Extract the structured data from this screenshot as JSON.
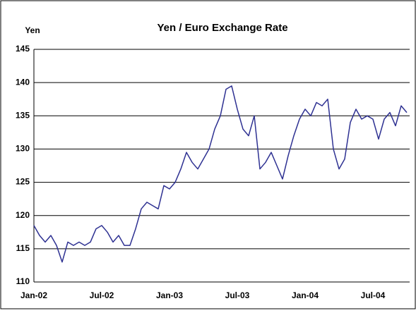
{
  "chart_data": {
    "type": "line",
    "title": "Yen / Euro Exchange Rate",
    "y_label": "Yen",
    "categories": [
      "Jan-02",
      null,
      null,
      null,
      null,
      null,
      null,
      null,
      null,
      null,
      null,
      null,
      "Jul-02",
      null,
      null,
      null,
      null,
      null,
      null,
      null,
      null,
      null,
      null,
      null,
      "Jan-03",
      null,
      null,
      null,
      null,
      null,
      null,
      null,
      null,
      null,
      null,
      null,
      "Jul-03",
      null,
      null,
      null,
      null,
      null,
      null,
      null,
      null,
      null,
      null,
      null,
      "Jan-04",
      null,
      null,
      null,
      null,
      null,
      null,
      null,
      null,
      null,
      null,
      null,
      "Jul-04",
      null,
      null,
      null,
      null,
      null,
      null
    ],
    "series": [
      {
        "name": "Yen / Euro",
        "color": "#2e3192",
        "values": [
          118.5,
          117,
          116,
          117,
          115.5,
          113,
          116,
          115.5,
          116,
          115.5,
          116,
          118,
          118.5,
          117.5,
          116,
          117,
          115.5,
          115.5,
          118,
          121,
          122,
          121.5,
          121,
          124.5,
          124,
          125,
          127,
          129.5,
          128,
          127,
          128.5,
          130,
          133,
          135,
          139,
          139.5,
          136,
          133,
          132,
          135,
          127,
          128,
          129.5,
          127.5,
          125.5,
          129,
          132,
          134.5,
          136,
          135,
          137,
          136.5,
          137.5,
          130,
          127,
          128.5,
          134,
          136,
          134.5,
          135,
          134.5,
          131.5,
          134.5,
          135.5,
          133.5,
          136.5,
          135.5
        ]
      }
    ],
    "ylim": [
      110,
      145
    ],
    "yticks": [
      110,
      115,
      120,
      125,
      130,
      135,
      140,
      145
    ],
    "grid": true
  }
}
